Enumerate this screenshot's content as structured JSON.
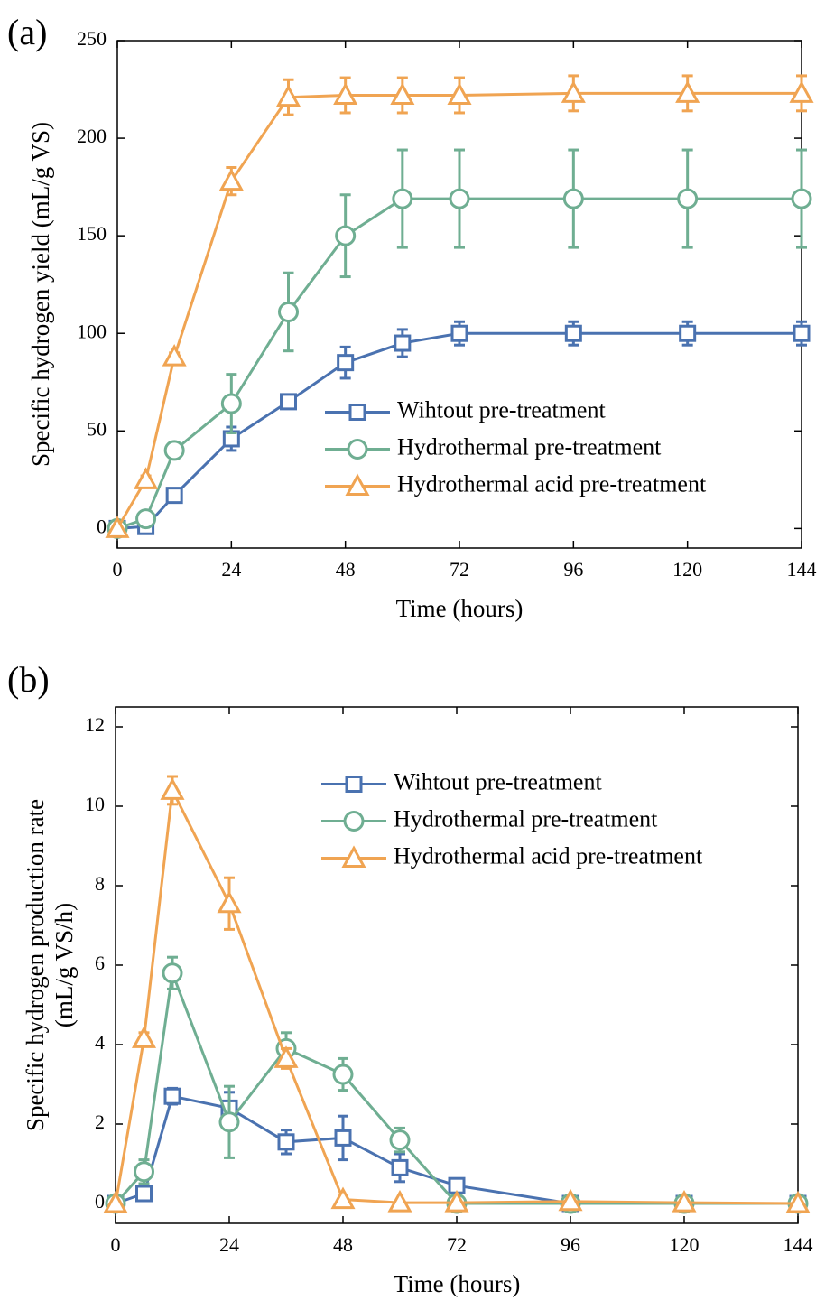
{
  "chart_data": [
    {
      "type": "line",
      "label": "(a)",
      "xlabel": "Time (hours)",
      "ylabel": "Specific hydrogen yield (mL/g VS)",
      "x": [
        0,
        6,
        12,
        24,
        36,
        48,
        60,
        72,
        96,
        120,
        144
      ],
      "xlim": [
        0,
        144
      ],
      "xticks": [
        0,
        24,
        48,
        72,
        96,
        120,
        144
      ],
      "ylim": [
        -10,
        250
      ],
      "yticks": [
        0,
        50,
        100,
        150,
        200,
        250
      ],
      "legend": "lower right",
      "series": [
        {
          "name": "Wihtout pre-treatment",
          "color": "#4a72b0",
          "marker": "square",
          "values": [
            0,
            1,
            17,
            46,
            65,
            85,
            95,
            100,
            100,
            100,
            100
          ],
          "errors": [
            0,
            1,
            2,
            6,
            2,
            8,
            7,
            6,
            6,
            6,
            6
          ]
        },
        {
          "name": "Hydrothermal pre-treatment",
          "color": "#6fae92",
          "marker": "circle",
          "values": [
            0,
            5,
            40,
            64,
            111,
            150,
            169,
            169,
            169,
            169,
            169
          ],
          "errors": [
            0,
            1,
            2,
            15,
            20,
            21,
            25,
            25,
            25,
            25,
            25
          ]
        },
        {
          "name": "Hydrothermal acid pre-treatment",
          "color": "#f0a452",
          "marker": "triangle",
          "values": [
            0,
            25,
            88,
            178,
            221,
            222,
            222,
            222,
            223,
            223,
            223
          ],
          "errors": [
            0,
            2,
            2,
            7,
            9,
            9,
            9,
            9,
            9,
            9,
            9
          ]
        }
      ]
    },
    {
      "type": "line",
      "label": "(b)",
      "xlabel": "Time (hours)",
      "ylabel": [
        "Specific hydrogen production rate",
        "(mL/g VS/h)"
      ],
      "x": [
        0,
        6,
        12,
        24,
        36,
        48,
        60,
        72,
        96,
        120,
        144
      ],
      "xlim": [
        0,
        144
      ],
      "xticks": [
        0,
        24,
        48,
        72,
        96,
        120,
        144
      ],
      "ylim": [
        -0.5,
        12.5
      ],
      "yticks": [
        0,
        2,
        4,
        6,
        8,
        10,
        12
      ],
      "legend": "upper right",
      "series": [
        {
          "name": "Wihtout pre-treatment",
          "color": "#4a72b0",
          "marker": "square",
          "values": [
            0,
            0.25,
            2.7,
            2.4,
            1.55,
            1.65,
            0.9,
            0.45,
            0,
            0,
            0
          ],
          "errors": [
            0,
            0.1,
            0.2,
            0.4,
            0.3,
            0.55,
            0.35,
            0.15,
            0,
            0,
            0
          ]
        },
        {
          "name": "Hydrothermal pre-treatment",
          "color": "#6fae92",
          "marker": "circle",
          "values": [
            0,
            0.8,
            5.8,
            2.05,
            3.9,
            3.25,
            1.6,
            0,
            0,
            0,
            0
          ],
          "errors": [
            0,
            0.3,
            0.4,
            0.9,
            0.4,
            0.4,
            0.3,
            0,
            0,
            0,
            0
          ]
        },
        {
          "name": "Hydrothermal acid pre-treatment",
          "color": "#f0a452",
          "marker": "triangle",
          "values": [
            0,
            4.15,
            10.4,
            7.55,
            3.65,
            0.1,
            0.02,
            0.02,
            0.05,
            0.02,
            0
          ],
          "errors": [
            0,
            0.15,
            0.35,
            0.65,
            0.25,
            0,
            0,
            0,
            0,
            0,
            0
          ]
        }
      ]
    }
  ]
}
